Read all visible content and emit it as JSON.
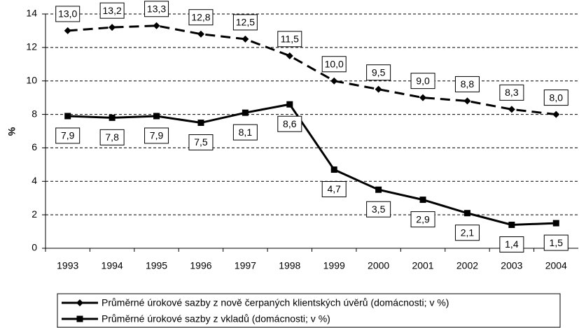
{
  "chart_data": {
    "type": "line",
    "y_label": "%",
    "categories": [
      "1993",
      "1994",
      "1995",
      "1996",
      "1997",
      "1998",
      "1999",
      "2000",
      "2001",
      "2002",
      "2003",
      "2004"
    ],
    "series": [
      {
        "name": "Průměrné úrokové sazby z nově čerpaných klientských úvěrů (domácnosti; v %)",
        "color": "#000000",
        "dash": true,
        "marker": "diamond",
        "values": [
          13.0,
          13.2,
          13.3,
          12.8,
          12.5,
          11.5,
          10.0,
          9.5,
          9.0,
          8.8,
          8.3,
          8.0
        ],
        "value_labels": [
          "13,0",
          "13,2",
          "13,3",
          "12,8",
          "12,5",
          "11,5",
          "10,0",
          "9,5",
          "9,0",
          "8,8",
          "8,3",
          "8,0"
        ]
      },
      {
        "name": "Průměrné úrokové sazby z vkladů (domácnosti; v %)",
        "color": "#000000",
        "dash": false,
        "marker": "square",
        "values": [
          7.9,
          7.8,
          7.9,
          7.5,
          8.1,
          8.6,
          4.7,
          3.5,
          2.9,
          2.1,
          1.4,
          1.5
        ],
        "value_labels": [
          "7,9",
          "7,8",
          "7,9",
          "7,5",
          "8,1",
          "8,6",
          "4,7",
          "3,5",
          "2,9",
          "2,1",
          "1,4",
          "1,5"
        ]
      }
    ],
    "ylim": [
      0,
      14
    ],
    "yticks": [
      0,
      2,
      4,
      6,
      8,
      10,
      12,
      14
    ],
    "grid": true
  }
}
